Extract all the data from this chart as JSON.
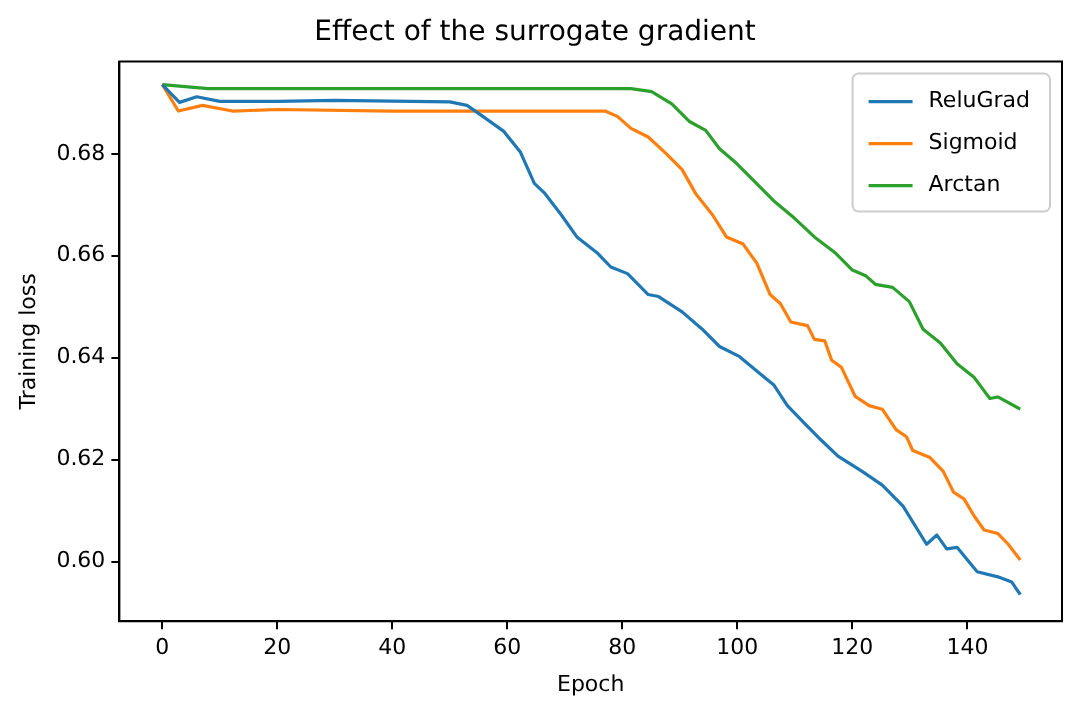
{
  "chart_data": {
    "type": "line",
    "title": "Effect of the surrogate gradient",
    "xlabel": "Epoch",
    "ylabel": "Training loss",
    "xlim": [
      -7.45,
      156.45
    ],
    "xticks": [
      0,
      20,
      40,
      60,
      80,
      100,
      120,
      140
    ],
    "ylim": [
      0.5883,
      0.6981
    ],
    "yticks": [
      {
        "value": 0.6,
        "label": "0.60"
      },
      {
        "value": 0.62,
        "label": "0.62"
      },
      {
        "value": 0.64,
        "label": "0.64"
      },
      {
        "value": 0.66,
        "label": "0.66"
      },
      {
        "value": 0.68,
        "label": "0.68"
      }
    ],
    "grid": false,
    "legend": "top right",
    "marker": "none",
    "line_style": "solid",
    "series": [
      {
        "name": "ReluGrad",
        "color": "#1f77b4",
        "x": [
          0,
          3,
          6,
          10,
          20,
          30,
          50,
          53,
          55.8,
          59.4,
          62.3,
          64.7,
          66.4,
          69.4,
          72.1,
          75.6,
          78,
          80.9,
          84.5,
          86.3,
          90.4,
          93.9,
          96.9,
          100.4,
          104,
          106.3,
          108.7,
          111.6,
          114.6,
          117.5,
          121.7,
          125.2,
          128.8,
          132.9,
          134.7,
          136.4,
          138.2,
          141.7,
          145.3,
          147.7,
          149.2
        ],
        "values": [
          0.6936,
          0.6901,
          0.6912,
          0.6903,
          0.6903,
          0.6905,
          0.6902,
          0.6895,
          0.6873,
          0.6844,
          0.6803,
          0.6742,
          0.6724,
          0.668,
          0.6637,
          0.6606,
          0.6578,
          0.6565,
          0.6524,
          0.652,
          0.649,
          0.6456,
          0.6422,
          0.6402,
          0.6368,
          0.6347,
          0.6306,
          0.6272,
          0.6238,
          0.6207,
          0.6177,
          0.615,
          0.6109,
          0.6034,
          0.6052,
          0.6025,
          0.6028,
          0.598,
          0.597,
          0.596,
          0.5935
        ]
      },
      {
        "name": "Sigmoid",
        "color": "#ff7f0e",
        "x": [
          0,
          2.8,
          7,
          12.2,
          20,
          40,
          60,
          77,
          79.2,
          81.5,
          84.5,
          87.4,
          90.4,
          92.8,
          95.7,
          98.1,
          101,
          103.4,
          105.7,
          107.5,
          109.3,
          112.2,
          113.4,
          115.2,
          116.4,
          118.1,
          120.5,
          122.9,
          125.2,
          127.6,
          129.4,
          130.5,
          133.5,
          135.8,
          137.6,
          139.4,
          141.2,
          142.9,
          145.3,
          147.1,
          149.2
        ],
        "values": [
          0.6936,
          0.6884,
          0.6895,
          0.6884,
          0.6887,
          0.6884,
          0.6884,
          0.6884,
          0.6873,
          0.685,
          0.6833,
          0.6803,
          0.6769,
          0.6721,
          0.668,
          0.6637,
          0.6623,
          0.6585,
          0.6524,
          0.6506,
          0.647,
          0.6463,
          0.6436,
          0.6433,
          0.6395,
          0.6381,
          0.6324,
          0.6306,
          0.6299,
          0.6259,
          0.6245,
          0.6218,
          0.6204,
          0.6177,
          0.6136,
          0.6123,
          0.6089,
          0.6062,
          0.6055,
          0.6034,
          0.6003
        ]
      },
      {
        "name": "Arctan",
        "color": "#2ca02c",
        "x": [
          0,
          4,
          8,
          40,
          81.5,
          85.1,
          88.6,
          91.6,
          94.5,
          96.9,
          99.8,
          102.8,
          106.3,
          109.9,
          113.4,
          117,
          120,
          122.3,
          124,
          127,
          129.9,
          132.3,
          135.3,
          138.2,
          141.2,
          143.9,
          145.3,
          149.2
        ],
        "values": [
          0.6936,
          0.6932,
          0.6928,
          0.6928,
          0.6928,
          0.6922,
          0.6898,
          0.6864,
          0.6846,
          0.681,
          0.6782,
          0.6748,
          0.6708,
          0.6674,
          0.6637,
          0.6606,
          0.6572,
          0.6561,
          0.6544,
          0.6538,
          0.651,
          0.6456,
          0.6429,
          0.6388,
          0.6361,
          0.632,
          0.6323,
          0.6299
        ]
      }
    ]
  }
}
